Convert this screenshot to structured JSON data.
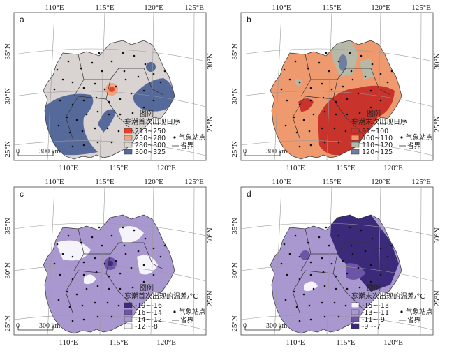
{
  "colors": {
    "a": [
      "#e7412a",
      "#f2a47f",
      "#d9d4d2",
      "#55699b"
    ],
    "b": [
      "#c8342b",
      "#ee9a6e",
      "#b6b8a8",
      "#6f7ea0"
    ],
    "c": [
      "#3c2a7c",
      "#6c54a6",
      "#a998cf",
      "#f6f4fb"
    ],
    "d": [
      "#f6f4fb",
      "#a998cf",
      "#6c54a6",
      "#3b2a7a"
    ]
  },
  "panels": [
    {
      "id": "a",
      "letter": "a",
      "lon_labels": [
        "110°E",
        "115°E",
        "120°E",
        "125°E"
      ],
      "lat_labels_left": [
        "35°N",
        "30°N",
        "25°N"
      ],
      "lat_labels_right": [
        "30°N",
        "25°N"
      ],
      "legend_title": "图例",
      "legend_subtitle": "寒潮首次出现日序",
      "legend_items": [
        "213~250",
        "250~280",
        "280~300",
        "300~325"
      ],
      "station_label": "气象站点",
      "border_label": "省界",
      "scale_label": "300 km",
      "scale_zero": "0"
    },
    {
      "id": "b",
      "letter": "b",
      "lon_labels": [
        "110°E",
        "115°E",
        "120°E",
        "125°E"
      ],
      "lat_labels_left": [
        "35°N",
        "30°N",
        "25°N"
      ],
      "lat_labels_right": [
        "30°N",
        "25°N"
      ],
      "legend_title": "图例",
      "legend_subtitle": "寒潮末次出现日序",
      "legend_items": [
        "91~100",
        "100~110",
        "110~120",
        "120~125"
      ],
      "station_label": "气象站点",
      "border_label": "省界",
      "scale_label": "300 km",
      "scale_zero": "0"
    },
    {
      "id": "c",
      "letter": "c",
      "lon_labels": [
        "110°E",
        "115°E",
        "120°E",
        "125°E"
      ],
      "lat_labels_left": [
        "35°N",
        "30°N",
        "25°N"
      ],
      "lat_labels_right": [
        "30°N",
        "25°N"
      ],
      "legend_title": "图例",
      "legend_subtitle": "寒潮首次出现的温差/°C",
      "legend_items": [
        "-19~-16",
        "-16~-14",
        "-14~-12",
        "-12~-8"
      ],
      "station_label": "气象站点",
      "border_label": "省界",
      "scale_label": "300 km",
      "scale_zero": "0"
    },
    {
      "id": "d",
      "letter": "d",
      "lon_labels": [
        "110°E",
        "115°E",
        "120°E",
        "125°E"
      ],
      "lat_labels_left": [
        "35°N",
        "30°N",
        "25°N"
      ],
      "lat_labels_right": [
        "30°N",
        "25°N"
      ],
      "legend_title": "图例",
      "legend_subtitle": "寒潮末次出现的温差/°C",
      "legend_items": [
        "-15~-13",
        "-13~-11",
        "-11~-9",
        "-9~-7"
      ],
      "station_label": "气象站点",
      "border_label": "省界",
      "scale_label": "300 km",
      "scale_zero": "0"
    }
  ]
}
